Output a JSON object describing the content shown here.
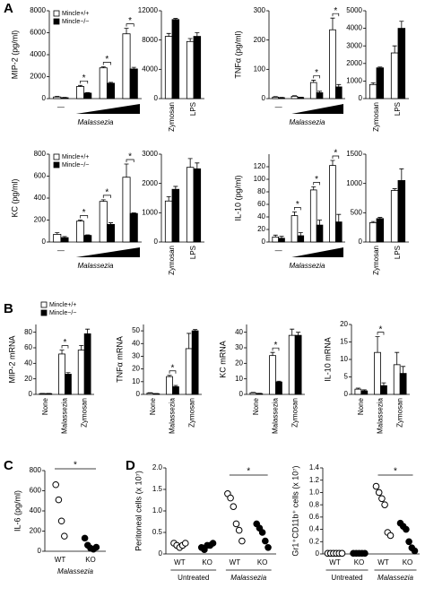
{
  "panel_labels": [
    "A",
    "B",
    "C",
    "D"
  ],
  "chart_data": [
    {
      "type": "bar",
      "ylabel": "MIP-2 (pg/ml)",
      "xlabel": "Malassezia",
      "categories": [
        "—",
        null,
        null,
        null
      ],
      "ylim": [
        0,
        8000
      ],
      "yticks": [
        0,
        2000,
        4000,
        6000,
        8000
      ],
      "legend": "upper left",
      "series": [
        {
          "name": "Mincle+/+",
          "color": "#ffffff",
          "values": [
            150,
            1100,
            2800,
            5900
          ],
          "errors": [
            50,
            100,
            100,
            500
          ]
        },
        {
          "name": "Mincle−/−",
          "color": "#000000",
          "values": [
            80,
            500,
            1400,
            2700
          ],
          "errors": [
            30,
            50,
            80,
            150
          ]
        }
      ],
      "annotations": [
        null,
        "*",
        "*",
        "*"
      ]
    },
    {
      "type": "bar",
      "categories": [
        "Zymosan",
        "LPS"
      ],
      "ylim": [
        0,
        12000
      ],
      "yticks": [
        0,
        4000,
        8000,
        12000
      ],
      "series": [
        {
          "color": "#ffffff",
          "values": [
            8500,
            7800
          ],
          "errors": [
            400,
            400
          ]
        },
        {
          "color": "#000000",
          "values": [
            10800,
            8500
          ],
          "errors": [
            150,
            500
          ]
        }
      ]
    },
    {
      "type": "bar",
      "ylabel": "TNFα (pg/ml)",
      "xlabel": "Malassezia",
      "categories": [
        "—",
        null,
        null,
        null
      ],
      "ylim": [
        0,
        300
      ],
      "yticks": [
        0,
        100,
        200,
        300
      ],
      "series": [
        {
          "color": "#ffffff",
          "values": [
            5,
            8,
            55,
            235
          ],
          "errors": [
            2,
            2,
            8,
            40
          ]
        },
        {
          "color": "#000000",
          "values": [
            3,
            4,
            20,
            40
          ],
          "errors": [
            1,
            1,
            5,
            8
          ]
        }
      ],
      "annotations": [
        null,
        null,
        "*",
        "*"
      ]
    },
    {
      "type": "bar",
      "categories": [
        "Zymosan",
        "LPS"
      ],
      "ylim": [
        0,
        5000
      ],
      "yticks": [
        0,
        1000,
        2000,
        3000,
        4000,
        5000
      ],
      "series": [
        {
          "color": "#ffffff",
          "values": [
            800,
            2600
          ],
          "errors": [
            100,
            400
          ]
        },
        {
          "color": "#000000",
          "values": [
            1750,
            4000
          ],
          "errors": [
            50,
            400
          ]
        }
      ]
    },
    {
      "type": "bar",
      "ylabel": "KC (pg/ml)",
      "xlabel": "Malassezia",
      "categories": [
        "—",
        null,
        null,
        null
      ],
      "ylim": [
        0,
        800
      ],
      "yticks": [
        0,
        200,
        400,
        600,
        800
      ],
      "legend": "upper left",
      "series": [
        {
          "name": "Mincle+/+",
          "color": "#ffffff",
          "values": [
            70,
            190,
            370,
            590
          ],
          "errors": [
            15,
            10,
            15,
            120
          ]
        },
        {
          "name": "Mincle−/−",
          "color": "#000000",
          "values": [
            40,
            60,
            160,
            260
          ],
          "errors": [
            10,
            5,
            15,
            5
          ]
        }
      ],
      "annotations": [
        null,
        "*",
        "*",
        "*"
      ]
    },
    {
      "type": "bar",
      "categories": [
        "Zymosan",
        "LPS"
      ],
      "ylim": [
        0,
        3000
      ],
      "yticks": [
        0,
        1000,
        2000,
        3000
      ],
      "series": [
        {
          "color": "#ffffff",
          "values": [
            1400,
            2550
          ],
          "errors": [
            150,
            300
          ]
        },
        {
          "color": "#000000",
          "values": [
            1800,
            2500
          ],
          "errors": [
            100,
            200
          ]
        }
      ]
    },
    {
      "type": "bar",
      "ylabel": "IL-10 (pg/ml)",
      "xlabel": "Malassezia",
      "categories": [
        "—",
        null,
        null,
        null
      ],
      "ylim": [
        0,
        140
      ],
      "yticks": [
        0,
        20,
        40,
        60,
        80,
        100,
        120
      ],
      "series": [
        {
          "color": "#ffffff",
          "values": [
            8,
            42,
            83,
            122
          ],
          "errors": [
            3,
            6,
            5,
            8
          ]
        },
        {
          "color": "#000000",
          "values": [
            6,
            10,
            27,
            32
          ],
          "errors": [
            3,
            5,
            8,
            12
          ]
        }
      ],
      "annotations": [
        null,
        "*",
        "*",
        "*"
      ]
    },
    {
      "type": "bar",
      "categories": [
        "Zymosan",
        "LPS"
      ],
      "ylim": [
        0,
        1500
      ],
      "yticks": [
        0,
        500,
        1000,
        1500
      ],
      "series": [
        {
          "color": "#ffffff",
          "values": [
            330,
            880
          ],
          "errors": [
            20,
            30
          ]
        },
        {
          "color": "#000000",
          "values": [
            400,
            1050
          ],
          "errors": [
            20,
            200
          ]
        }
      ]
    },
    {
      "type": "bar",
      "ylabel": "MIP-2 mRNA",
      "categories": [
        "None",
        "Malassezia",
        "Zymosan"
      ],
      "ylim": [
        0,
        90
      ],
      "yticks": [
        0,
        20,
        40,
        60,
        80
      ],
      "legend": "upper left",
      "series": [
        {
          "name": "Mincle+/+",
          "color": "#ffffff",
          "values": [
            1,
            52,
            57
          ],
          "errors": [
            0.3,
            5,
            6
          ]
        },
        {
          "name": "Mincle−/−",
          "color": "#000000",
          "values": [
            1,
            26,
            78
          ],
          "errors": [
            0.3,
            2,
            6
          ]
        }
      ],
      "annotations": [
        null,
        "*",
        null
      ]
    },
    {
      "type": "bar",
      "ylabel": "TNFα mRNA",
      "categories": [
        "None",
        "Malassezia",
        "Zymosan"
      ],
      "ylim": [
        0,
        55
      ],
      "yticks": [
        0,
        10,
        20,
        30,
        40,
        50
      ],
      "series": [
        {
          "color": "#ffffff",
          "values": [
            1,
            14,
            36
          ],
          "errors": [
            0.3,
            1,
            12
          ]
        },
        {
          "color": "#000000",
          "values": [
            0.5,
            6,
            50
          ],
          "errors": [
            0.2,
            1,
            1
          ]
        }
      ],
      "annotations": [
        null,
        "*",
        null
      ]
    },
    {
      "type": "bar",
      "ylabel": "KC mRNA",
      "categories": [
        "None",
        "Malassezia",
        "Zymosan"
      ],
      "ylim": [
        0,
        45
      ],
      "yticks": [
        0,
        10,
        20,
        30,
        40
      ],
      "series": [
        {
          "color": "#ffffff",
          "values": [
            1,
            25,
            38
          ],
          "errors": [
            0.3,
            2,
            4
          ]
        },
        {
          "color": "#000000",
          "values": [
            0.5,
            8,
            38
          ],
          "errors": [
            0.2,
            0.5,
            2
          ]
        }
      ],
      "annotations": [
        null,
        "*",
        null
      ]
    },
    {
      "type": "bar",
      "ylabel": "IL-10 mRNA",
      "categories": [
        "None",
        "Malassezia",
        "Zymosan"
      ],
      "ylim": [
        0,
        20
      ],
      "yticks": [
        0,
        5,
        10,
        15,
        20
      ],
      "series": [
        {
          "color": "#ffffff",
          "values": [
            1.5,
            12,
            8.5
          ],
          "errors": [
            0.3,
            4.5,
            3.5
          ]
        },
        {
          "color": "#000000",
          "values": [
            1,
            2.5,
            6
          ],
          "errors": [
            0.3,
            0.8,
            2
          ]
        }
      ],
      "annotations": [
        null,
        "*",
        null
      ]
    },
    {
      "type": "dot",
      "ylabel": "IL-6 (pg/ml)",
      "categories": [
        "WT",
        "KO"
      ],
      "fills": [
        "#ffffff",
        "#000000"
      ],
      "ylim": [
        0,
        800
      ],
      "yticks": [
        0,
        200,
        400,
        600,
        800
      ],
      "values": [
        [
          660,
          510,
          300,
          150
        ],
        [
          130,
          60,
          30,
          20,
          40
        ]
      ],
      "group_labels": [
        "Malassezia"
      ],
      "annotations": [
        "*"
      ]
    },
    {
      "type": "dot",
      "ylabel": "Peritoneal cells (x 10⁷)",
      "categories": [
        "WT",
        "KO",
        "WT",
        "KO"
      ],
      "fills": [
        "#ffffff",
        "#000000",
        "#ffffff",
        "#000000"
      ],
      "ylim": [
        0,
        2
      ],
      "yticks": [
        0,
        0.5,
        {
          "value": 1,
          "label": "1.0"
        },
        1.5,
        {
          "value": 2,
          "label": "2.0"
        }
      ],
      "values": [
        [
          0.25,
          0.2,
          0.15,
          0.2,
          0.25
        ],
        [
          0.15,
          0.1,
          0.2,
          0.2,
          0.25
        ],
        [
          1.4,
          1.3,
          1.1,
          0.7,
          0.55,
          0.3
        ],
        [
          0.7,
          0.6,
          0.5,
          0.3,
          0.15
        ]
      ],
      "group_labels": [
        "Untreated",
        "Malassezia"
      ],
      "annotations": [
        null,
        "*"
      ]
    },
    {
      "type": "dot",
      "ylabel": "Gr1⁺CD11b⁺ cells (x 10⁷)",
      "categories": [
        "WT",
        "KO",
        "WT",
        "KO"
      ],
      "fills": [
        "#ffffff",
        "#000000",
        "#ffffff",
        "#000000"
      ],
      "ylim": [
        0,
        1.4
      ],
      "yticks": [
        0,
        0.2,
        0.4,
        0.6,
        0.8,
        {
          "value": 1,
          "label": "1.0"
        },
        1.2,
        1.4
      ],
      "values": [
        [
          0.01,
          0.01,
          0.01,
          0.01,
          0.01,
          0.01
        ],
        [
          0.01,
          0.01,
          0.01,
          0.01,
          0.01
        ],
        [
          1.1,
          1.0,
          0.9,
          0.8,
          0.35,
          0.3
        ],
        [
          0.5,
          0.45,
          0.4,
          0.2,
          0.1,
          0.05
        ]
      ],
      "group_labels": [
        "Untreated",
        "Malassezia"
      ],
      "annotations": [
        null,
        "*"
      ]
    }
  ]
}
